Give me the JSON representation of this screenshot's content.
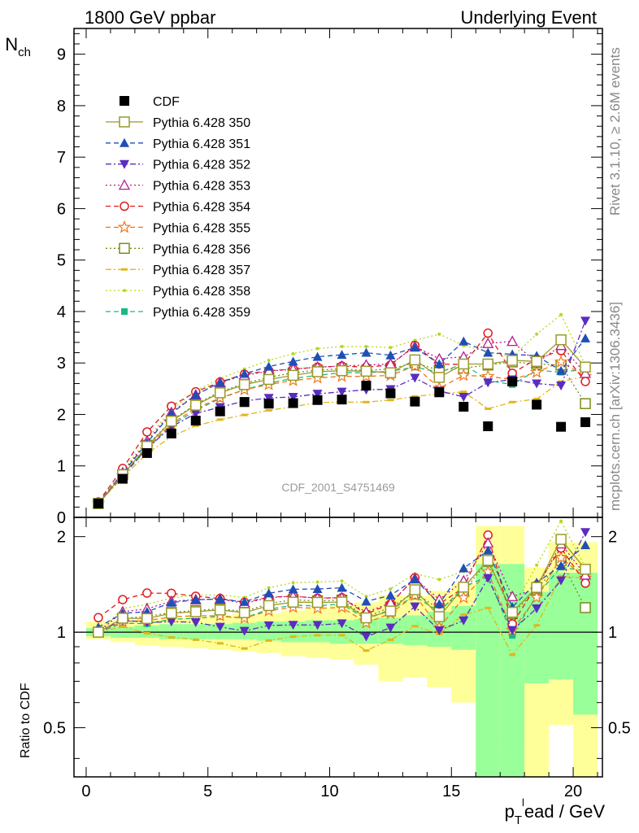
{
  "header": {
    "left_title": "1800 GeV ppbar",
    "right_title": "Underlying Event"
  },
  "side_labels": {
    "rivet": "Rivet 3.1.10, ≥ 2.6M events",
    "mcplots": "mcplots.cern.ch [arXiv:1306.3436]"
  },
  "analysis_label": "CDF_2001_S4751469",
  "axes": {
    "main_ylabel_base": "N",
    "main_ylabel_sub": "ch",
    "ratio_ylabel": "Ratio to CDF",
    "xlabel_p": "p",
    "xlabel_sub": "T",
    "xlabel_sup": "l",
    "xlabel_rest": "ead / GeV"
  },
  "chart_data": [
    {
      "type": "line",
      "panel": "main",
      "x": [
        0.5,
        1.5,
        2.5,
        3.5,
        4.5,
        5.5,
        6.5,
        7.5,
        8.5,
        9.5,
        10.5,
        11.5,
        12.5,
        13.5,
        14.5,
        15.5,
        16.5,
        17.5,
        18.5,
        19.5,
        20.5
      ],
      "xlim": [
        -0.5,
        21.2
      ],
      "ylim": [
        0,
        9.5
      ],
      "xticks": [
        "0",
        "5",
        "10",
        "15",
        "20"
      ],
      "xtick_values": [
        0,
        5,
        10,
        15,
        20
      ],
      "yticks": [
        "0",
        "1",
        "2",
        "3",
        "4",
        "5",
        "6",
        "7",
        "8",
        "9"
      ],
      "ytick_values": [
        0,
        1,
        2,
        3,
        4,
        5,
        6,
        7,
        8,
        9
      ],
      "legend_position": "upper-left",
      "series": [
        {
          "name": "CDF",
          "color": "#000000",
          "marker": "square-filled",
          "line": "none",
          "values": [
            0.27,
            0.75,
            1.25,
            1.63,
            1.88,
            2.06,
            2.24,
            2.21,
            2.22,
            2.28,
            2.29,
            2.56,
            2.41,
            2.25,
            2.43,
            2.15,
            1.77,
            2.64,
            2.19,
            1.76,
            1.85
          ]
        },
        {
          "name": "Pythia 6.428 350",
          "color": "#9a9a2a",
          "marker": "square-open",
          "line": "solid",
          "values": [
            0.27,
            0.83,
            1.38,
            1.87,
            2.18,
            2.42,
            2.58,
            2.68,
            2.76,
            2.83,
            2.85,
            2.84,
            2.81,
            3.06,
            2.72,
            2.98,
            2.98,
            3.05,
            3.03,
            3.45,
            2.92
          ]
        },
        {
          "name": "Pythia 6.428 351",
          "color": "#1f4fb5",
          "marker": "triangle-up-filled",
          "line": "dashed",
          "values": [
            0.28,
            0.86,
            1.45,
            2.02,
            2.38,
            2.62,
            2.79,
            2.93,
            3.03,
            3.12,
            3.16,
            3.2,
            3.15,
            3.3,
            2.98,
            3.42,
            3.2,
            3.17,
            3.14,
            2.85,
            3.48
          ]
        },
        {
          "name": "Pythia 6.428 352",
          "color": "#5a2cc0",
          "marker": "triangle-down-filled",
          "line": "dashdot",
          "values": [
            0.27,
            0.82,
            1.34,
            1.76,
            2.02,
            2.14,
            2.26,
            2.32,
            2.34,
            2.4,
            2.44,
            2.48,
            2.49,
            2.71,
            2.46,
            2.34,
            2.62,
            2.68,
            2.6,
            2.56,
            3.82
          ]
        },
        {
          "name": "Pythia 6.428 353",
          "color": "#b51e8c",
          "marker": "triangle-up-open",
          "line": "dotted",
          "values": [
            0.27,
            0.87,
            1.48,
            2.04,
            2.38,
            2.62,
            2.76,
            2.84,
            2.88,
            2.92,
            2.94,
            2.96,
            2.98,
            3.32,
            3.08,
            3.12,
            3.38,
            3.42,
            3.0,
            3.34,
            2.8
          ]
        },
        {
          "name": "Pythia 6.428 354",
          "color": "#e01b1b",
          "marker": "circle-open",
          "line": "dashed",
          "values": [
            0.3,
            0.95,
            1.66,
            2.16,
            2.44,
            2.63,
            2.78,
            2.85,
            2.88,
            2.92,
            2.94,
            2.92,
            2.96,
            3.34,
            2.98,
            2.97,
            3.58,
            2.8,
            3.08,
            3.24,
            2.64
          ]
        },
        {
          "name": "Pythia 6.428 355",
          "color": "#f07818",
          "marker": "star-open",
          "line": "dashed",
          "values": [
            0.27,
            0.81,
            1.36,
            1.82,
            2.12,
            2.32,
            2.48,
            2.58,
            2.66,
            2.71,
            2.74,
            2.74,
            2.76,
            2.94,
            2.51,
            2.76,
            2.74,
            2.68,
            2.82,
            3.02,
            2.74
          ]
        },
        {
          "name": "Pythia 6.428 356",
          "color": "#7a8c1c",
          "marker": "square-open",
          "line": "dotted",
          "values": [
            0.27,
            0.83,
            1.4,
            1.88,
            2.2,
            2.44,
            2.6,
            2.72,
            2.81,
            2.86,
            2.89,
            2.85,
            2.89,
            3.0,
            2.86,
            2.9,
            2.96,
            3.02,
            2.98,
            2.96,
            2.21
          ]
        },
        {
          "name": "Pythia 6.428 357",
          "color": "#e2b61a",
          "marker": "dash",
          "line": "dashdot",
          "values": [
            0.27,
            0.78,
            1.24,
            1.57,
            1.78,
            1.9,
            1.99,
            2.08,
            2.15,
            2.23,
            2.24,
            2.24,
            2.28,
            2.35,
            2.4,
            2.44,
            2.11,
            2.24,
            2.3,
            2.64,
            2.74
          ]
        },
        {
          "name": "Pythia 6.428 358",
          "color": "#b5d91a",
          "marker": "dot",
          "line": "dotted",
          "values": [
            0.27,
            0.89,
            1.53,
            2.09,
            2.46,
            2.7,
            2.88,
            3.05,
            3.18,
            3.28,
            3.32,
            3.32,
            3.3,
            3.44,
            3.56,
            3.34,
            3.22,
            3.12,
            3.56,
            3.94,
            2.96
          ]
        },
        {
          "name": "Pythia 6.428 359",
          "color": "#1ab886",
          "marker": "square-filled-small",
          "line": "dashed",
          "values": [
            0.27,
            0.8,
            1.33,
            1.79,
            2.08,
            2.31,
            2.48,
            2.61,
            2.7,
            2.76,
            2.81,
            2.81,
            2.84,
            2.92,
            2.82,
            2.98,
            2.66,
            2.58,
            2.86,
            2.82,
            2.88
          ]
        }
      ]
    },
    {
      "type": "line",
      "panel": "ratio",
      "ylim": [
        0.35,
        2.3
      ],
      "yscale": "log",
      "yticks": [
        "0.5",
        "1",
        "2"
      ],
      "ytick_values": [
        0.5,
        1,
        2
      ],
      "xticks": [
        "0",
        "5",
        "10",
        "15",
        "20"
      ],
      "xtick_values": [
        0,
        5,
        10,
        15,
        20
      ],
      "reference_line": 1,
      "uncertainty_bands": {
        "x_edges": [
          0,
          1,
          2,
          3,
          4,
          5,
          6,
          7,
          8,
          9,
          10,
          11,
          12,
          13,
          14,
          15,
          16,
          17,
          18,
          19,
          20,
          21
        ],
        "outer_color": "#ffff99",
        "inner_color": "#99ff99",
        "outer_low": [
          0.95,
          0.93,
          0.91,
          0.9,
          0.89,
          0.88,
          0.87,
          0.86,
          0.84,
          0.83,
          0.82,
          0.79,
          0.7,
          0.72,
          0.67,
          0.6,
          0.35,
          0.45,
          0.35,
          0.51,
          0.35
        ],
        "outer_high": [
          1.08,
          1.09,
          1.1,
          1.11,
          1.12,
          1.13,
          1.14,
          1.15,
          1.17,
          1.19,
          1.21,
          1.24,
          1.31,
          1.3,
          1.35,
          1.42,
          2.16,
          2.16,
          1.6,
          1.92,
          1.92
        ],
        "inner_low": [
          0.97,
          0.96,
          0.96,
          0.95,
          0.95,
          0.95,
          0.95,
          0.94,
          0.93,
          0.93,
          0.92,
          0.92,
          0.92,
          0.91,
          0.9,
          0.88,
          0.35,
          0.35,
          0.69,
          0.71,
          0.55
        ],
        "inner_high": [
          1.03,
          1.04,
          1.05,
          1.06,
          1.06,
          1.06,
          1.07,
          1.08,
          1.08,
          1.09,
          1.09,
          1.1,
          1.11,
          1.13,
          1.16,
          1.21,
          1.64,
          1.64,
          1.34,
          1.54,
          1.54
        ]
      }
    }
  ]
}
